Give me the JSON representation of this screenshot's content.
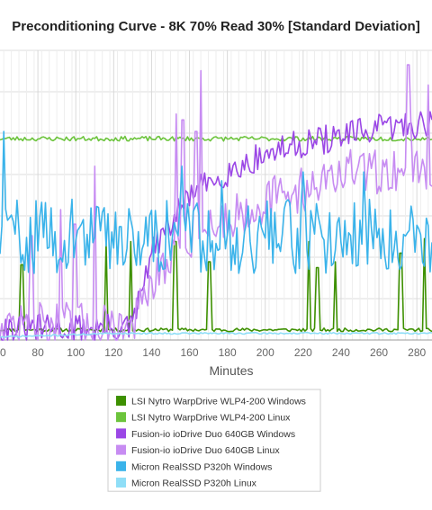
{
  "chart_data": {
    "type": "line",
    "title": "Preconditioning Curve - 8K 70% Read 30% [Standard Deviation]",
    "xlabel": "Minutes",
    "ylabel": "",
    "x_ticks": [
      "80",
      "100",
      "120",
      "140",
      "160",
      "180",
      "200",
      "220",
      "240",
      "260",
      "280"
    ],
    "xlim": [
      60,
      288
    ],
    "ylim": [
      0,
      100
    ],
    "grid": true,
    "legend_position": "bottom",
    "series": [
      {
        "name": "LSI Nytro WarpDrive WLP4-200 Windows",
        "color": "#3d9000",
        "base": 3.5,
        "noise": 0.6,
        "seed": 11,
        "spikes": [
          [
            71.5,
            26
          ],
          [
            116,
            34
          ],
          [
            129,
            34
          ],
          [
            152.5,
            34
          ],
          [
            170.5,
            27
          ],
          [
            223,
            34
          ],
          [
            227.5,
            25
          ],
          [
            237,
            27
          ],
          [
            271.5,
            30
          ],
          [
            284,
            35
          ]
        ]
      },
      {
        "name": "LSI Nytro WarpDrive WLP4-200 Linux",
        "color": "#6cc43c",
        "base": 69.5,
        "noise": 0.8,
        "seed": 23,
        "spikes": []
      },
      {
        "name": "Fusion-io ioDrive Duo 640GB Windows",
        "color": "#9b47e6",
        "start": [
          60,
          4
        ],
        "jump": [
          118,
          4,
          5
        ],
        "ramp": [
          [
            130,
            5
          ],
          [
            140,
            30
          ],
          [
            160,
            50
          ],
          [
            180,
            58
          ],
          [
            200,
            64
          ],
          [
            220,
            68
          ],
          [
            240,
            70
          ],
          [
            260,
            73
          ],
          [
            288,
            75
          ]
        ],
        "noise": 5,
        "seed": 31,
        "spikes": []
      },
      {
        "name": "Fusion-io ioDrive Duo 640GB Linux",
        "color": "#c78cf2",
        "base": 5,
        "ramp": [
          [
            130,
            6
          ],
          [
            140,
            18
          ],
          [
            160,
            35
          ],
          [
            180,
            42
          ],
          [
            200,
            48
          ],
          [
            220,
            52
          ],
          [
            240,
            58
          ],
          [
            260,
            58
          ],
          [
            288,
            60
          ]
        ],
        "noise": 8,
        "seed": 47,
        "spikes": [
          [
            76.5,
            36
          ],
          [
            92,
            45
          ],
          [
            99.5,
            40
          ],
          [
            110,
            60
          ],
          [
            153,
            78
          ],
          [
            156.5,
            76
          ],
          [
            163.5,
            72
          ],
          [
            166,
            93
          ],
          [
            275.5,
            95
          ],
          [
            277,
            72
          ],
          [
            286,
            88
          ]
        ]
      },
      {
        "name": "Micron RealSSD P320h Windows",
        "color": "#3ab3ea",
        "base": 36,
        "noise": 13,
        "seed": 59,
        "spikes": [
          [
            62,
            72
          ],
          [
            156,
            60
          ],
          [
            177,
            55
          ],
          [
            220,
            58
          ],
          [
            252,
            58
          ]
        ]
      },
      {
        "name": "Micron RealSSD P320h Linux",
        "color": "#8fdef7",
        "start": [
          60,
          1.0
        ],
        "ramp": [
          [
            60,
            1.0
          ],
          [
            120,
            2.3
          ],
          [
            288,
            2.3
          ]
        ],
        "noise": 0.3,
        "seed": 71,
        "spikes": []
      }
    ]
  }
}
